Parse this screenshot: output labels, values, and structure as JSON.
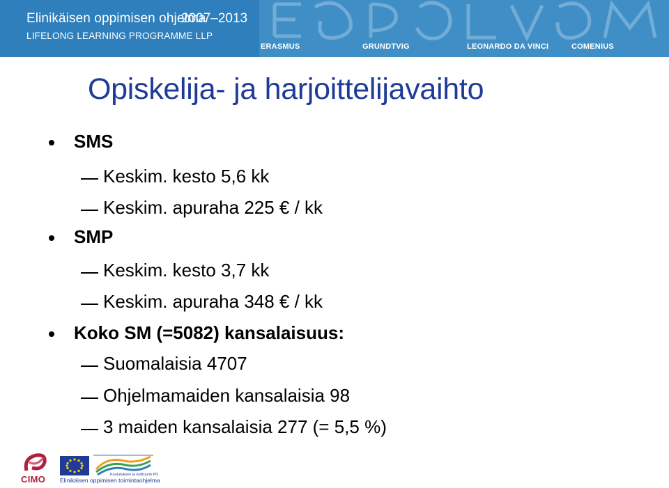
{
  "banner": {
    "title": "Elinikäisen oppimisen ohjelma",
    "subtitle": "LIFELONG LEARNING PROGRAMME LLP",
    "years": "2007–2013",
    "programmes": [
      "ERASMUS",
      "GRUNDTVIG",
      "LEONARDO DA VINCI",
      "COMENIUS"
    ]
  },
  "slide": {
    "title": "Opiskelija- ja harjoittelijavaihto",
    "items": [
      {
        "level": 1,
        "text": "SMS"
      },
      {
        "level": 2,
        "text": "Keskim. kesto 5,6 kk"
      },
      {
        "level": 2,
        "text": "Keskim. apuraha 225 € / kk"
      },
      {
        "level": 1,
        "text": "SMP"
      },
      {
        "level": 2,
        "text": "Keskim. kesto 3,7 kk"
      },
      {
        "level": 2,
        "text": "Keskim. apuraha 348 € / kk"
      },
      {
        "level": 1,
        "text": "Koko SM (=5082) kansalaisuus:"
      },
      {
        "level": 2,
        "text": "Suomalaisia 4707"
      },
      {
        "level": 2,
        "text": "Ohjelmamaiden kansalaisia 98"
      },
      {
        "level": 2,
        "text": "3 maiden kansalaisia 277 (= 5,5 %)"
      }
    ]
  },
  "footer": {
    "cimo": "CIMO",
    "caption": "Elinikäisen oppimisen toimintaohjelma",
    "small_caption": "Koulutuksen ja kulttuurin PO"
  },
  "colors": {
    "banner_blue": "#3f8fc6",
    "title_blue": "#1f3b97",
    "cimo_red": "#b01f3c"
  }
}
